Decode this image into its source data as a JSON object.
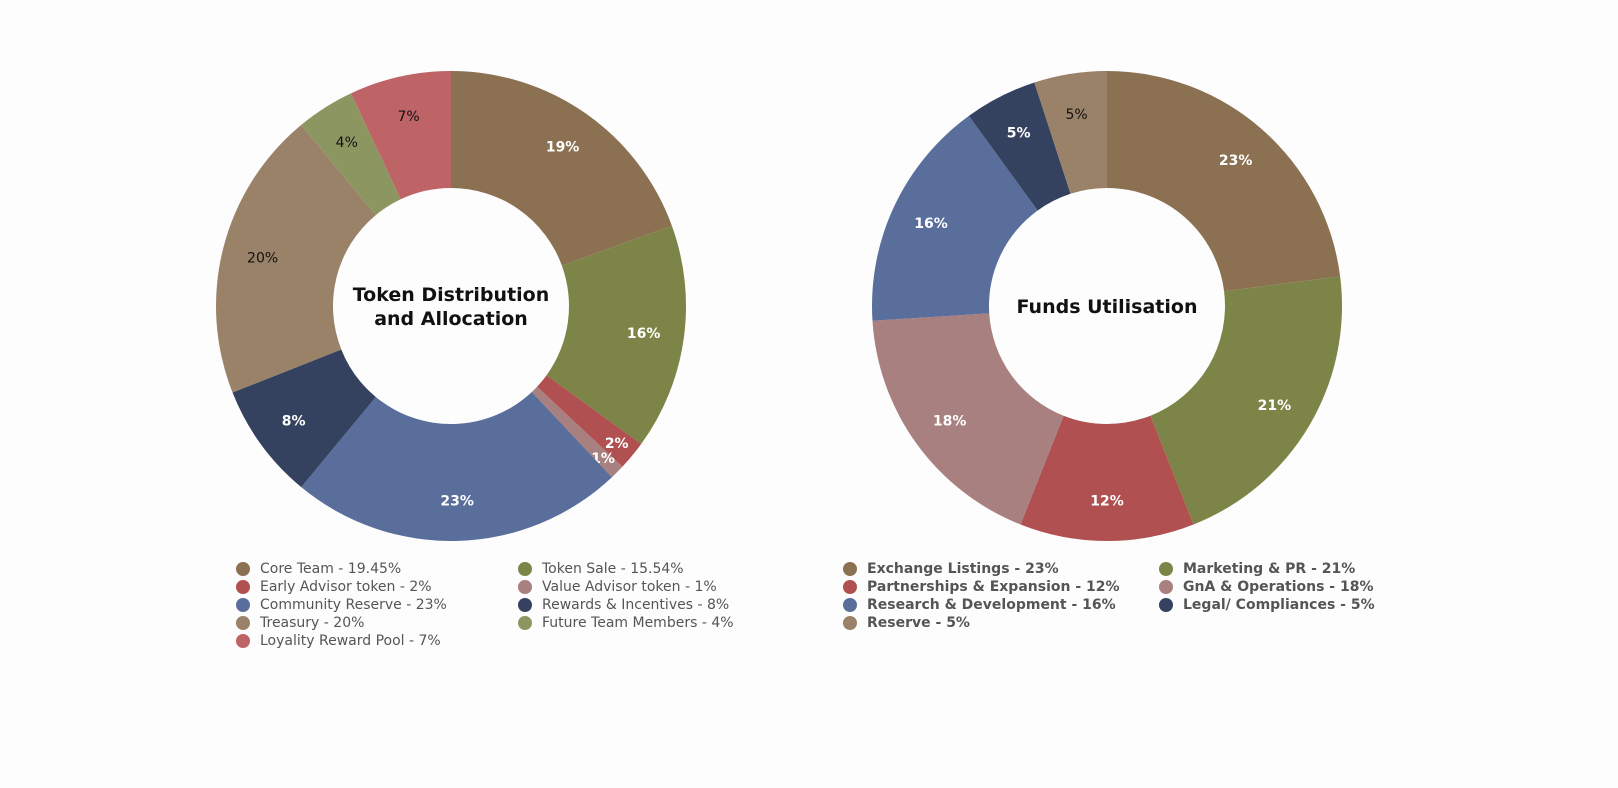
{
  "chart_data": [
    {
      "type": "pie",
      "title": "Token Distribution and Allocation",
      "title_lines": [
        "Token Distribution",
        "and Allocation"
      ],
      "donut": true,
      "legend_position": "bottom",
      "slices": [
        {
          "label": "Core Team - 19.45%",
          "value": 19.45,
          "data_label": "19%",
          "color": "#8b7152",
          "label_color": "#ffffff"
        },
        {
          "label": "Token Sale - 15.54%",
          "value": 15.54,
          "data_label": "16%",
          "color": "#7d8447",
          "label_color": "#ffffff"
        },
        {
          "label": "Early Advisor token - 2%",
          "value": 2,
          "data_label": "2%",
          "color": "#b05050",
          "label_color": "#ffffff"
        },
        {
          "label": "Value Advisor token - 1%",
          "value": 1,
          "data_label": "1%",
          "color": "#a98080",
          "label_color": "#ffffff"
        },
        {
          "label": "Community Reserve - 23%",
          "value": 23,
          "data_label": "23%",
          "color": "#5a6e9c",
          "label_color": "#ffffff"
        },
        {
          "label": "Rewards & Incentives - 8%",
          "value": 8,
          "data_label": "8%",
          "color": "#34425f",
          "label_color": "#ffffff"
        },
        {
          "label": "Treasury - 20%",
          "value": 20,
          "data_label": "20%",
          "color": "#9a8268",
          "label_color": "#111111"
        },
        {
          "label": "Future Team Members - 4%",
          "value": 4,
          "data_label": "4%",
          "color": "#8c9660",
          "label_color": "#111111"
        },
        {
          "label": "Loyality Reward Pool - 7%",
          "value": 7,
          "data_label": "7%",
          "color": "#bf6466",
          "label_color": "#111111"
        }
      ],
      "legend_order": [
        0,
        1,
        2,
        3,
        4,
        5,
        6,
        7,
        8
      ]
    },
    {
      "type": "pie",
      "title": "Funds Utilisation",
      "title_lines": [
        "Funds Utilisation"
      ],
      "donut": true,
      "legend_position": "bottom",
      "slices": [
        {
          "label": "Exchange Listings - 23%",
          "value": 23,
          "data_label": "23%",
          "color": "#8b7152",
          "label_color": "#ffffff"
        },
        {
          "label": "Marketing & PR - 21%",
          "value": 21,
          "data_label": "21%",
          "color": "#7d8447",
          "label_color": "#ffffff"
        },
        {
          "label": "Partnerships & Expansion - 12%",
          "value": 12,
          "data_label": "12%",
          "color": "#b05050",
          "label_color": "#ffffff"
        },
        {
          "label": "GnA & Operations - 18%",
          "value": 18,
          "data_label": "18%",
          "color": "#a98080",
          "label_color": "#ffffff"
        },
        {
          "label": "Research & Development - 16%",
          "value": 16,
          "data_label": "16%",
          "color": "#5a6e9c",
          "label_color": "#ffffff"
        },
        {
          "label": "Legal/ Compliances - 5%",
          "value": 5,
          "data_label": "5%",
          "color": "#34425f",
          "label_color": "#ffffff"
        },
        {
          "label": "Reserve - 5%",
          "value": 5,
          "data_label": "5%",
          "color": "#9a8268",
          "label_color": "#111111"
        }
      ]
    }
  ]
}
